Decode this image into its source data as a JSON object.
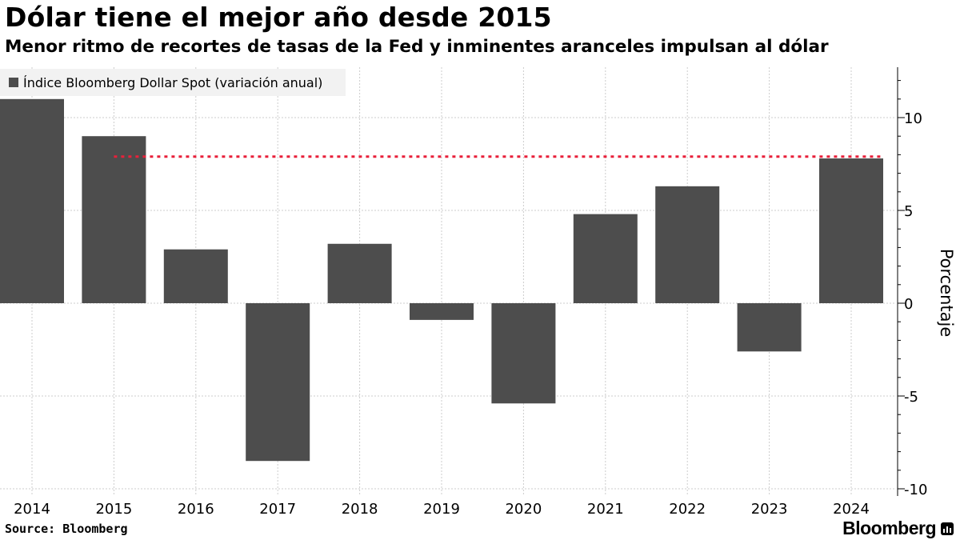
{
  "header": {
    "title": "Dólar tiene el mejor año desde 2015",
    "subtitle": "Menor ritmo de recortes de tasas de la Fed y inminentes aranceles impulsan al dólar"
  },
  "footer": {
    "source": "Source: Bloomberg",
    "brand": "Bloomberg"
  },
  "colors": {
    "bar": "#4d4d4d",
    "reference_line": "#e8203a",
    "grid": "#cccccc",
    "legend_bg": "#f2f2f2"
  },
  "icons": {
    "brand": "bloomberg-terminal-icon"
  },
  "chart_data": {
    "type": "bar",
    "categories": [
      "2014",
      "2015",
      "2016",
      "2017",
      "2018",
      "2019",
      "2020",
      "2021",
      "2022",
      "2023",
      "2024"
    ],
    "series": [
      {
        "name": "Índice Bloomberg Dollar Spot (variación anual)",
        "values": [
          11.0,
          9.0,
          2.9,
          -8.5,
          3.2,
          -0.9,
          -5.4,
          4.8,
          6.3,
          -2.6,
          7.8
        ]
      }
    ],
    "reference_line": {
      "value": 7.9,
      "from_category": "2015",
      "to_category": "2024",
      "style": "dotted"
    },
    "ylabel": "Porcentaje",
    "yticks": [
      10,
      5,
      0,
      -5,
      -10
    ],
    "ytick_labels": [
      "10",
      "5",
      "0",
      "-5",
      "-10"
    ],
    "ylim": [
      -10.5,
      12.5
    ],
    "grid": true,
    "legend_position": "top-left",
    "y_axis_side": "right"
  }
}
